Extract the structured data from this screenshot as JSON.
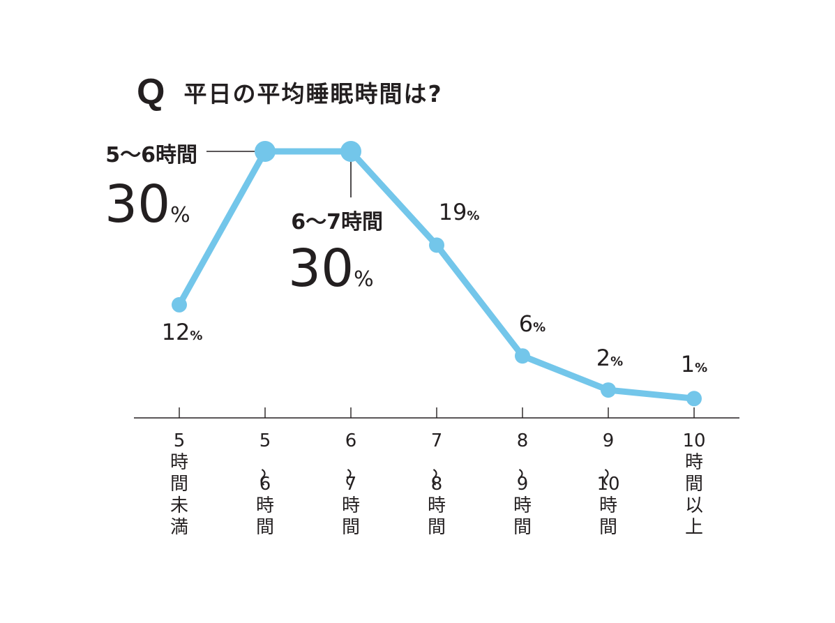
{
  "question": {
    "mark": "Q",
    "text": "平日の平均睡眠時間は?"
  },
  "colors": {
    "line": "#73c6ea",
    "text": "#231f20",
    "axis": "#231f20"
  },
  "chart_data": {
    "type": "line",
    "title": "平日の平均睡眠時間は?",
    "categories": [
      [
        "5",
        "時",
        "間",
        "未",
        "満"
      ],
      [
        "5",
        "〜",
        "6",
        "時",
        "間"
      ],
      [
        "6",
        "〜",
        "7",
        "時",
        "間"
      ],
      [
        "7",
        "〜",
        "8",
        "時",
        "間"
      ],
      [
        "8",
        "〜",
        "9",
        "時",
        "間"
      ],
      [
        "9",
        "〜",
        "10",
        "時",
        "間"
      ],
      [
        "10",
        "時",
        "間",
        "以",
        "上"
      ]
    ],
    "values": [
      12,
      30,
      30,
      19,
      6,
      2,
      1
    ],
    "value_unit": "%",
    "callouts": [
      {
        "index": 1,
        "label": "5〜6時間",
        "value": "30"
      },
      {
        "index": 2,
        "label": "6〜7時間",
        "value": "30"
      }
    ],
    "ylim": [
      0,
      30
    ],
    "grid": false,
    "legend": "none"
  }
}
